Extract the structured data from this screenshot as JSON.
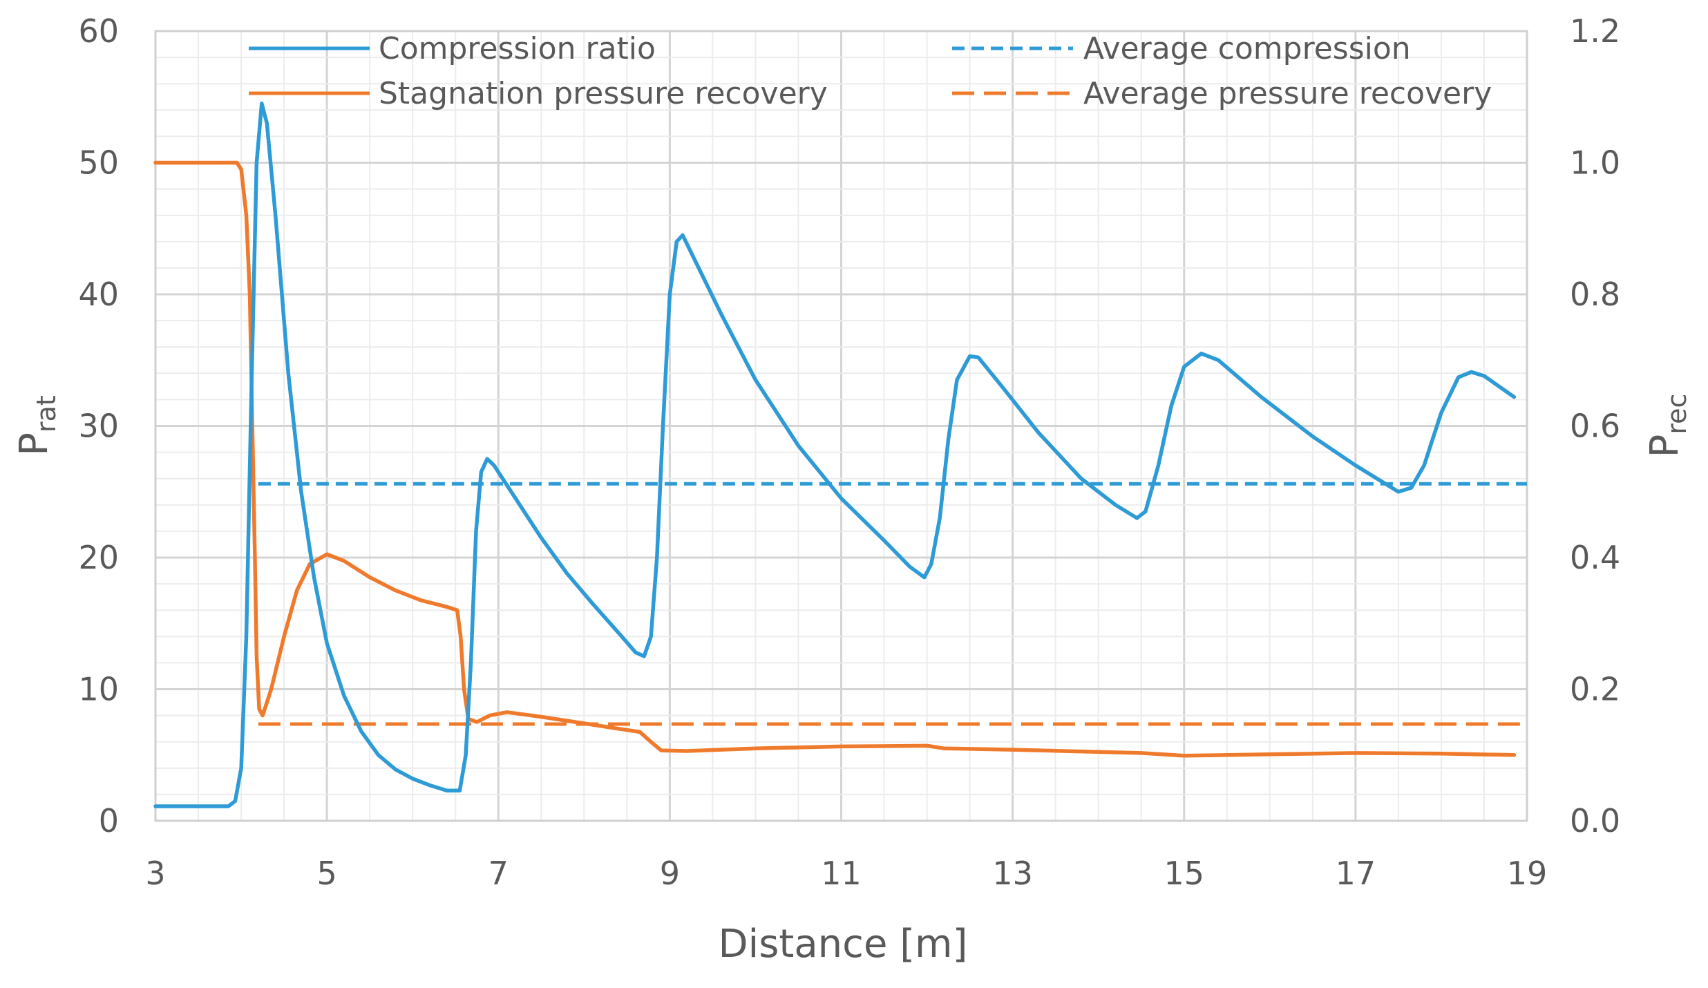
{
  "chart_data": {
    "type": "line",
    "title": "",
    "xlabel": "Distance [m]",
    "ylabel": {
      "base": "P",
      "sub": "rat"
    },
    "y2label": {
      "base": "P",
      "sub": "rec"
    },
    "xlim": [
      3,
      19
    ],
    "ylim": [
      0,
      60
    ],
    "y2lim": [
      0,
      1.2
    ],
    "grid": true,
    "x_ticks": [
      "3",
      "5",
      "7",
      "9",
      "11",
      "13",
      "15",
      "17",
      "19"
    ],
    "y_ticks": [
      "0",
      "10",
      "20",
      "30",
      "40",
      "50",
      "60"
    ],
    "y2_ticks": [
      "0.0",
      "0.2",
      "0.4",
      "0.6",
      "0.8",
      "1.0",
      "1.2"
    ],
    "legend_position": "top",
    "series": [
      {
        "name": "Compression ratio",
        "axis": "left",
        "style": "solid",
        "color": "#2E9BD6",
        "points": [
          [
            3.0,
            1.1
          ],
          [
            3.85,
            1.1
          ],
          [
            3.93,
            1.5
          ],
          [
            4.0,
            4
          ],
          [
            4.06,
            14
          ],
          [
            4.12,
            33
          ],
          [
            4.18,
            50
          ],
          [
            4.24,
            54.5
          ],
          [
            4.3,
            53
          ],
          [
            4.4,
            46
          ],
          [
            4.55,
            34
          ],
          [
            4.7,
            25
          ],
          [
            4.85,
            18.5
          ],
          [
            5.0,
            13.5
          ],
          [
            5.2,
            9.5
          ],
          [
            5.4,
            6.8
          ],
          [
            5.6,
            5.0
          ],
          [
            5.8,
            3.9
          ],
          [
            6.0,
            3.2
          ],
          [
            6.2,
            2.7
          ],
          [
            6.4,
            2.3
          ],
          [
            6.55,
            2.3
          ],
          [
            6.62,
            5
          ],
          [
            6.68,
            12
          ],
          [
            6.74,
            22
          ],
          [
            6.8,
            26.5
          ],
          [
            6.87,
            27.5
          ],
          [
            6.95,
            27
          ],
          [
            7.2,
            24.5
          ],
          [
            7.5,
            21.5
          ],
          [
            7.8,
            18.8
          ],
          [
            8.1,
            16.5
          ],
          [
            8.4,
            14.3
          ],
          [
            8.6,
            12.8
          ],
          [
            8.7,
            12.5
          ],
          [
            8.78,
            14
          ],
          [
            8.85,
            20
          ],
          [
            8.92,
            30
          ],
          [
            9.0,
            40
          ],
          [
            9.08,
            44
          ],
          [
            9.15,
            44.5
          ],
          [
            9.3,
            42.5
          ],
          [
            9.6,
            38.5
          ],
          [
            10.0,
            33.5
          ],
          [
            10.5,
            28.5
          ],
          [
            11.0,
            24.5
          ],
          [
            11.5,
            21.3
          ],
          [
            11.8,
            19.3
          ],
          [
            11.97,
            18.5
          ],
          [
            12.05,
            19.5
          ],
          [
            12.15,
            23
          ],
          [
            12.25,
            29
          ],
          [
            12.35,
            33.5
          ],
          [
            12.5,
            35.3
          ],
          [
            12.6,
            35.2
          ],
          [
            12.9,
            32.8
          ],
          [
            13.3,
            29.5
          ],
          [
            13.8,
            26
          ],
          [
            14.2,
            24
          ],
          [
            14.45,
            23
          ],
          [
            14.55,
            23.5
          ],
          [
            14.7,
            27
          ],
          [
            14.85,
            31.5
          ],
          [
            15.0,
            34.5
          ],
          [
            15.2,
            35.5
          ],
          [
            15.4,
            35
          ],
          [
            15.9,
            32.2
          ],
          [
            16.5,
            29.2
          ],
          [
            17.0,
            27
          ],
          [
            17.3,
            25.8
          ],
          [
            17.5,
            25
          ],
          [
            17.65,
            25.3
          ],
          [
            17.8,
            27
          ],
          [
            18.0,
            31
          ],
          [
            18.2,
            33.7
          ],
          [
            18.35,
            34.1
          ],
          [
            18.5,
            33.8
          ],
          [
            18.85,
            32.2
          ]
        ]
      },
      {
        "name": "Stagnation pressure recovery",
        "axis": "right",
        "style": "solid",
        "color": "#F07A2B",
        "points": [
          [
            3.0,
            1.0
          ],
          [
            3.95,
            1.0
          ],
          [
            4.0,
            0.99
          ],
          [
            4.06,
            0.92
          ],
          [
            4.1,
            0.8
          ],
          [
            4.13,
            0.6
          ],
          [
            4.16,
            0.4
          ],
          [
            4.18,
            0.25
          ],
          [
            4.21,
            0.17
          ],
          [
            4.25,
            0.16
          ],
          [
            4.35,
            0.2
          ],
          [
            4.5,
            0.28
          ],
          [
            4.65,
            0.35
          ],
          [
            4.8,
            0.39
          ],
          [
            5.0,
            0.405
          ],
          [
            5.2,
            0.395
          ],
          [
            5.5,
            0.37
          ],
          [
            5.8,
            0.35
          ],
          [
            6.1,
            0.335
          ],
          [
            6.4,
            0.325
          ],
          [
            6.52,
            0.32
          ],
          [
            6.56,
            0.28
          ],
          [
            6.6,
            0.2
          ],
          [
            6.65,
            0.155
          ],
          [
            6.75,
            0.15
          ],
          [
            6.9,
            0.16
          ],
          [
            7.1,
            0.165
          ],
          [
            7.5,
            0.158
          ],
          [
            8.0,
            0.148
          ],
          [
            8.4,
            0.14
          ],
          [
            8.65,
            0.135
          ],
          [
            8.78,
            0.12
          ],
          [
            8.9,
            0.107
          ],
          [
            9.2,
            0.106
          ],
          [
            10.0,
            0.11
          ],
          [
            11.0,
            0.113
          ],
          [
            12.0,
            0.114
          ],
          [
            12.2,
            0.11
          ],
          [
            13.0,
            0.108
          ],
          [
            14.5,
            0.103
          ],
          [
            15.0,
            0.099
          ],
          [
            16.0,
            0.101
          ],
          [
            17.0,
            0.103
          ],
          [
            18.0,
            0.102
          ],
          [
            18.85,
            0.1
          ]
        ]
      },
      {
        "name": "Average compression",
        "axis": "left",
        "style": "dashed",
        "color": "#2E9BD6",
        "points": [
          [
            4.2,
            25.6
          ],
          [
            19.0,
            25.6
          ]
        ]
      },
      {
        "name": "Average pressure recovery",
        "axis": "right",
        "style": "dashed",
        "color": "#F07A2B",
        "points": [
          [
            4.2,
            0.147
          ],
          [
            19.0,
            0.147
          ]
        ]
      }
    ]
  }
}
